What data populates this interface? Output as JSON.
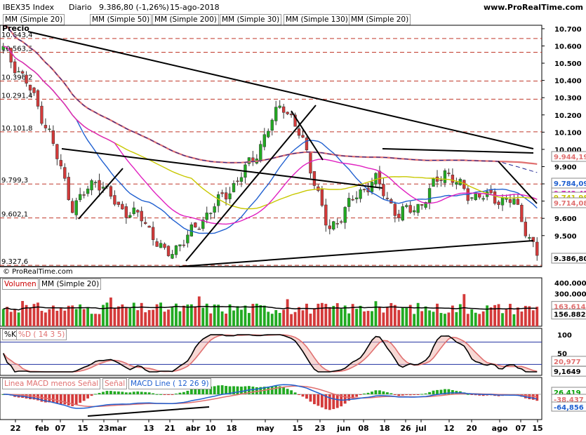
{
  "header": {
    "symbol": "IBEX35 Index",
    "period": "Diario",
    "last": "9.386,80 (-1,26%)",
    "date": "15-ago-2018",
    "site": "www.ProRealTime.com"
  },
  "price_panel": {
    "title": "Precio",
    "copyright": "© ProRealTime.com",
    "indicators": [
      {
        "label": "MM (Simple 20)",
        "color": "#2060d0"
      },
      {
        "label": "MM (Simple 50)",
        "color": "#c8c800"
      },
      {
        "label": "MM (Simple 200)",
        "color": "#e07070"
      },
      {
        "label": "MM (Simple 30)",
        "color": "#e020c0"
      },
      {
        "label": "MM (Simple 130)",
        "color": "#1a2090"
      },
      {
        "label": "MM (Simple 20)",
        "color": "#e07070"
      }
    ],
    "axis_labels": [
      "10.700",
      "10.600",
      "10.500",
      "10.400",
      "10.300",
      "10.200",
      "10.100",
      "10.000",
      "9.900",
      "9.800",
      "9.700",
      "9.600",
      "9.500"
    ],
    "level_labels": [
      "10.643,4",
      "10.563,5",
      "10.396,2",
      "10.291,4",
      "10.101,8",
      "9.799,3",
      "9.602,1",
      "9.327,6"
    ],
    "value_tags": [
      {
        "text": "9.944,19",
        "color": "#e07070"
      },
      {
        "text": "9.784,09",
        "color": "#2060d0"
      },
      {
        "text": "9.743,45",
        "color": "#e020c0"
      },
      {
        "text": "9.741,98",
        "color": "#c8c800"
      },
      {
        "text": "9.714,08",
        "color": "#e07070"
      },
      {
        "text": "9.386,80",
        "color": "#000000"
      }
    ]
  },
  "volume_panel": {
    "title": "Volumen",
    "ma_label": "MM (Simple 20)",
    "axis_labels": [
      "400.000",
      "300.000",
      "200.000"
    ],
    "value_tags": [
      {
        "text": "163.614",
        "color": "#e07070"
      },
      {
        "text": "156.882",
        "color": "#000000"
      }
    ]
  },
  "stoch_panel": {
    "k_label": "%K",
    "d_label": "%D ( 14 3 5)",
    "axis_labels": [
      "100",
      "50",
      "0"
    ],
    "value_tags": [
      {
        "text": "20,977",
        "color": "#e07070"
      },
      {
        "text": "9,1649",
        "color": "#000000"
      }
    ]
  },
  "macd_panel": {
    "hist_label": "Linea MACD menos Señal",
    "signal_label": "Señal",
    "line_label": "MACD Line ( 12 26 9)",
    "value_tags": [
      {
        "text": "26,419",
        "color": "#00a000"
      },
      {
        "text": "-38,437",
        "color": "#e07070"
      },
      {
        "text": "-64,856",
        "color": "#2060d0"
      }
    ]
  },
  "x_axis_labels": [
    "22",
    "feb",
    "07",
    "15",
    "23",
    "mar",
    "13",
    "21",
    "abr",
    "10",
    "18",
    "may",
    "15",
    "23",
    "jun",
    "08",
    "18",
    "26",
    "jul",
    "12",
    "20",
    "ago",
    "07",
    "15"
  ],
  "chart_data": {
    "type": "line",
    "title": "IBEX35 Index",
    "xlabel": "",
    "ylabel": "",
    "ylim": [
      9320,
      10720
    ],
    "grid": false,
    "x": [
      "22 ene",
      "feb",
      "07",
      "15",
      "23",
      "mar",
      "13",
      "21",
      "abr",
      "10",
      "18",
      "may",
      "15",
      "23",
      "jun",
      "08",
      "18",
      "26",
      "jul",
      "12",
      "20",
      "ago",
      "07",
      "15"
    ],
    "series": [
      {
        "values": [
          10580,
          10390,
          10090,
          9660,
          9830,
          9660,
          9600,
          9380,
          9500,
          9660,
          9800,
          10000,
          10280,
          10020,
          9520,
          9700,
          9830,
          9620,
          9680,
          9880,
          9740,
          9720,
          9700,
          9387
        ]
      }
    ]
  }
}
